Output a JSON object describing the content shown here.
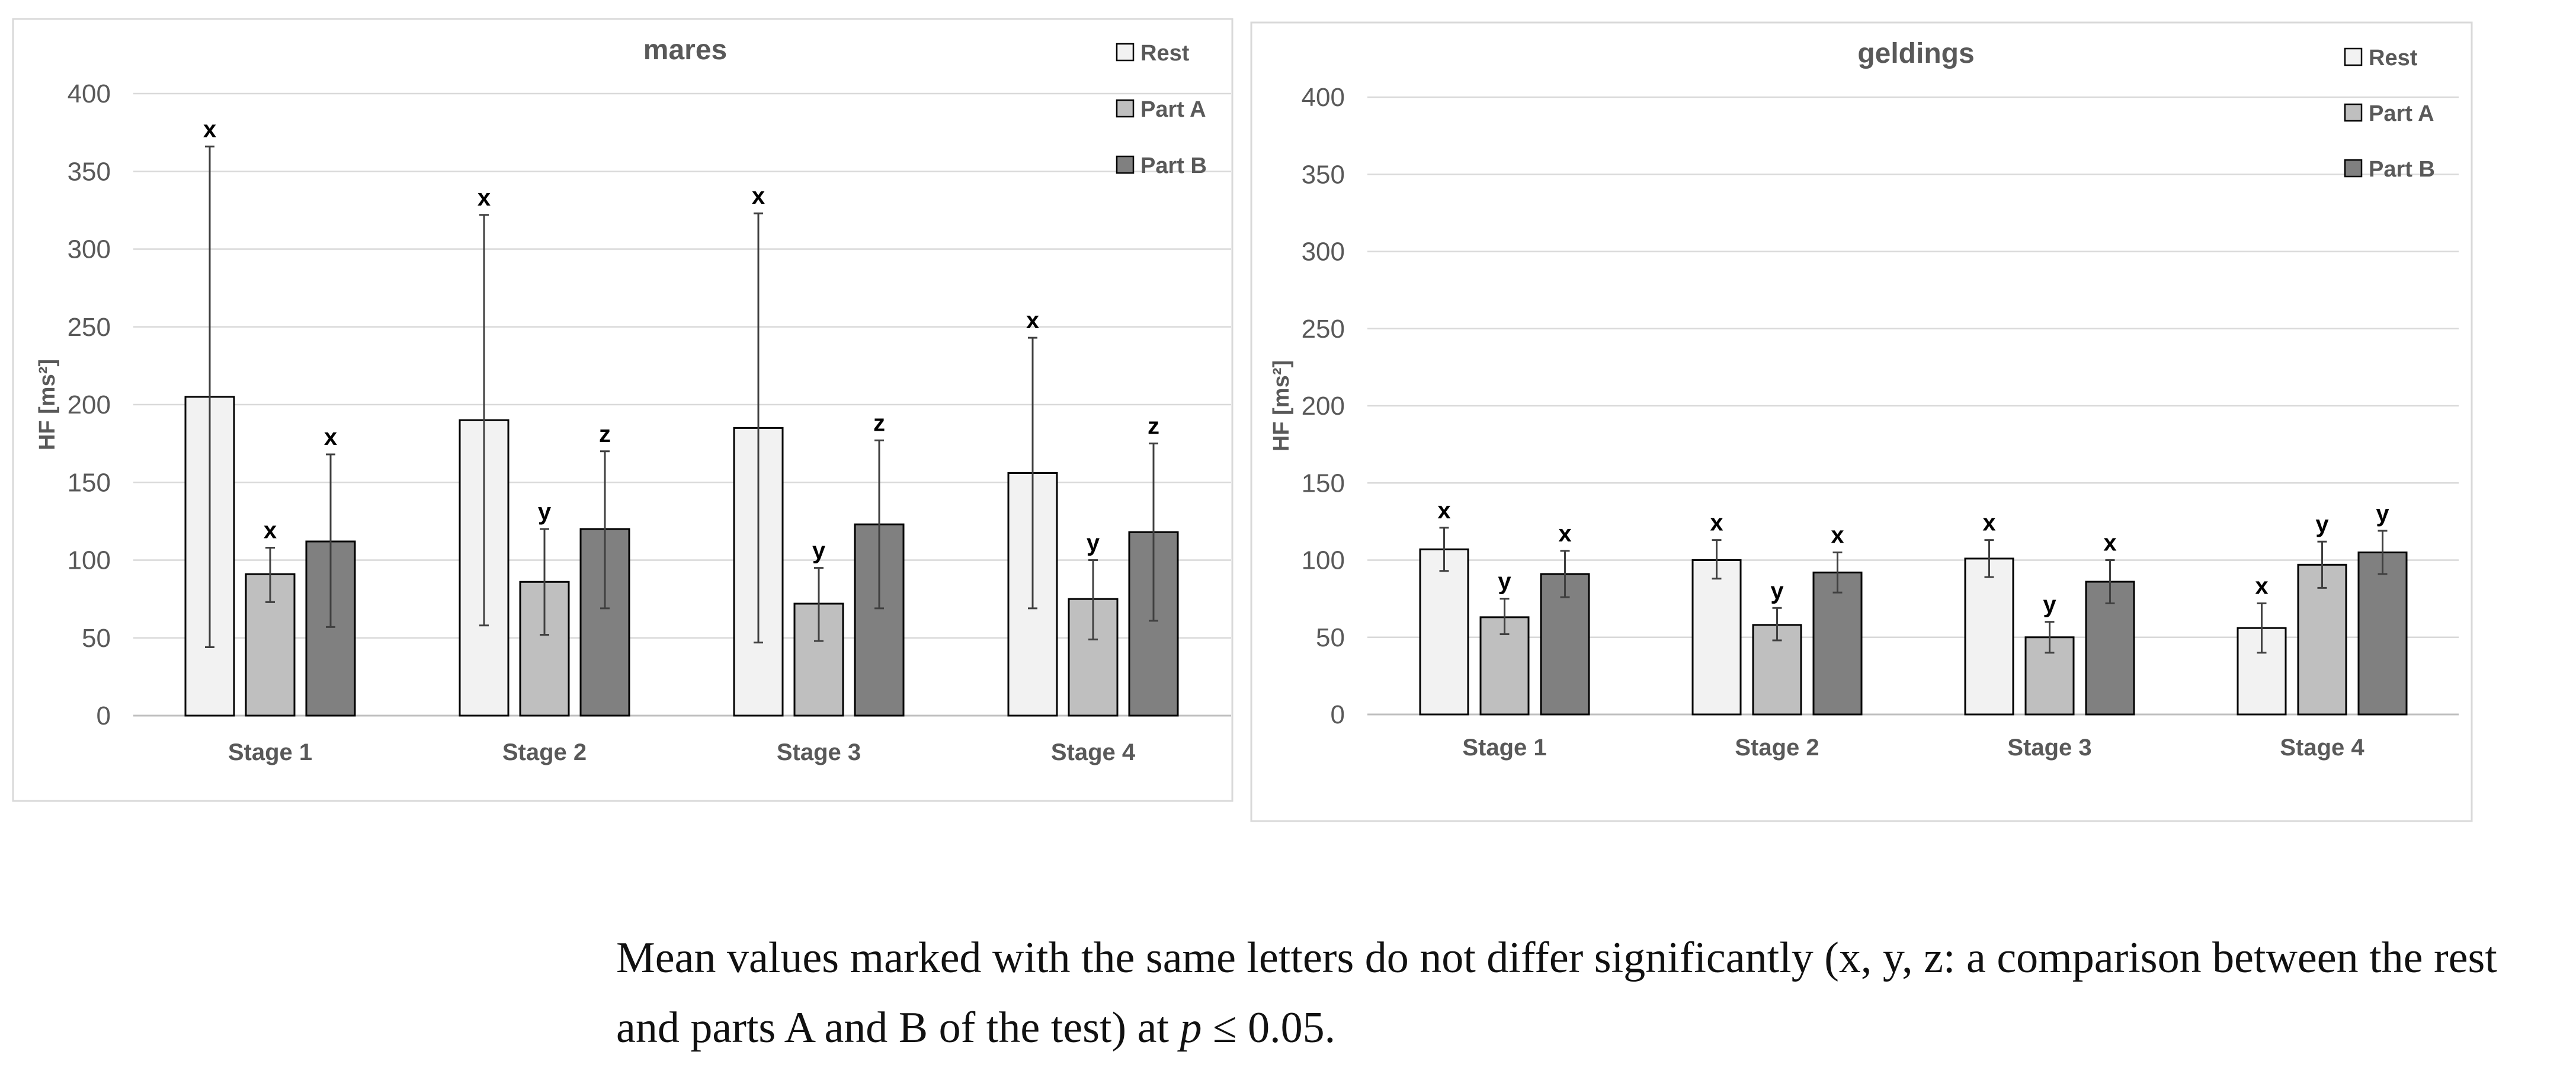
{
  "chart_data": [
    {
      "type": "bar",
      "title": "mares",
      "ylabel": "HF [ms²]",
      "xlabel": "",
      "ylim": [
        0,
        400
      ],
      "yticks": [
        "0",
        "50",
        "100",
        "150",
        "200",
        "250",
        "300",
        "350",
        "400"
      ],
      "categories": [
        "Stage 1",
        "Stage 2",
        "Stage 3",
        "Stage 4"
      ],
      "grid": true,
      "legend_position": "top-right",
      "series": [
        {
          "name": "Rest",
          "color": "#f2f2f2",
          "values": [
            205,
            190,
            185,
            156
          ],
          "err_low": [
            44,
            58,
            47,
            69
          ],
          "err_high": [
            366,
            322,
            323,
            243
          ],
          "letters": [
            "x",
            "x",
            "x",
            "x"
          ]
        },
        {
          "name": "Part A",
          "color": "#bfbfbf",
          "values": [
            91,
            86,
            72,
            75
          ],
          "err_low": [
            73,
            52,
            48,
            49
          ],
          "err_high": [
            108,
            120,
            95,
            100
          ],
          "letters": [
            "x",
            "y",
            "y",
            "y"
          ]
        },
        {
          "name": "Part B",
          "color": "#808080",
          "values": [
            112,
            120,
            123,
            118
          ],
          "err_low": [
            57,
            69,
            69,
            61
          ],
          "err_high": [
            168,
            170,
            177,
            175
          ],
          "letters": [
            "x",
            "z",
            "z",
            "z"
          ]
        }
      ]
    },
    {
      "type": "bar",
      "title": "geldings",
      "ylabel": "HF [ms²]",
      "xlabel": "",
      "ylim": [
        0,
        400
      ],
      "yticks": [
        "0",
        "50",
        "100",
        "150",
        "200",
        "250",
        "300",
        "350",
        "400"
      ],
      "categories": [
        "Stage 1",
        "Stage 2",
        "Stage 3",
        "Stage 4"
      ],
      "grid": true,
      "legend_position": "top-right",
      "series": [
        {
          "name": "Rest",
          "color": "#f2f2f2",
          "values": [
            107,
            100,
            101,
            56
          ],
          "err_low": [
            93,
            88,
            89,
            40
          ],
          "err_high": [
            121,
            113,
            113,
            72
          ],
          "letters": [
            "x",
            "x",
            "x",
            "x"
          ]
        },
        {
          "name": "Part A",
          "color": "#bfbfbf",
          "values": [
            63,
            58,
            50,
            97
          ],
          "err_low": [
            52,
            48,
            40,
            82
          ],
          "err_high": [
            75,
            69,
            60,
            112
          ],
          "letters": [
            "y",
            "y",
            "y",
            "y"
          ]
        },
        {
          "name": "Part B",
          "color": "#808080",
          "values": [
            91,
            92,
            86,
            105
          ],
          "err_low": [
            76,
            79,
            72,
            91
          ],
          "err_high": [
            106,
            105,
            100,
            119
          ],
          "letters": [
            "x",
            "x",
            "x",
            "y"
          ]
        }
      ]
    }
  ],
  "caption": {
    "part1": "Mean values marked with the same letters do not differ significantly (x, y, z: a comparison between the rest and parts A and B of the test) at ",
    "p": "p",
    "part2": " ≤ 0.05."
  }
}
